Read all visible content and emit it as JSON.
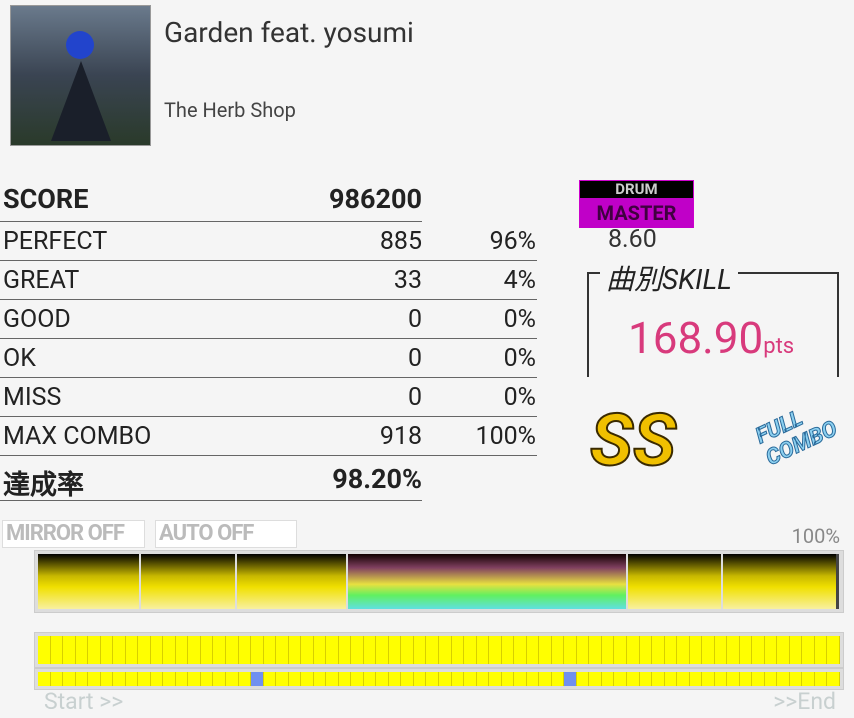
{
  "song": {
    "title": "Garden feat. yosumi",
    "artist": "The Herb Shop"
  },
  "results": {
    "score_label": "SCORE",
    "score": "986200",
    "rows": [
      {
        "label": "PERFECT",
        "count": "885",
        "percent": "96%"
      },
      {
        "label": "GREAT",
        "count": "33",
        "percent": "4%"
      },
      {
        "label": "GOOD",
        "count": "0",
        "percent": "0%"
      },
      {
        "label": "OK",
        "count": "0",
        "percent": "0%"
      },
      {
        "label": "MISS",
        "count": "0",
        "percent": "0%"
      },
      {
        "label": "MAX COMBO",
        "count": "918",
        "percent": "100%"
      }
    ],
    "achievement_label": "達成率",
    "achievement": "98.20%"
  },
  "difficulty": {
    "instrument": "DRUM",
    "level_name": "MASTER",
    "level": "8.60",
    "color": "#c000c8"
  },
  "skill": {
    "label": "曲別SKILL",
    "value": "168.90",
    "unit": "pts",
    "color": "#d83a7c"
  },
  "rank": "SS",
  "full_combo": "FULL COMBO",
  "options": {
    "mirror": "MIRROR OFF",
    "auto": "AUTO OFF"
  },
  "gauge_percent": "100%",
  "lanes": {
    "cells": 64,
    "miss_cells_lower": [
      17,
      42
    ]
  },
  "timeline": {
    "start": "Start >>",
    "end": ">>End"
  }
}
